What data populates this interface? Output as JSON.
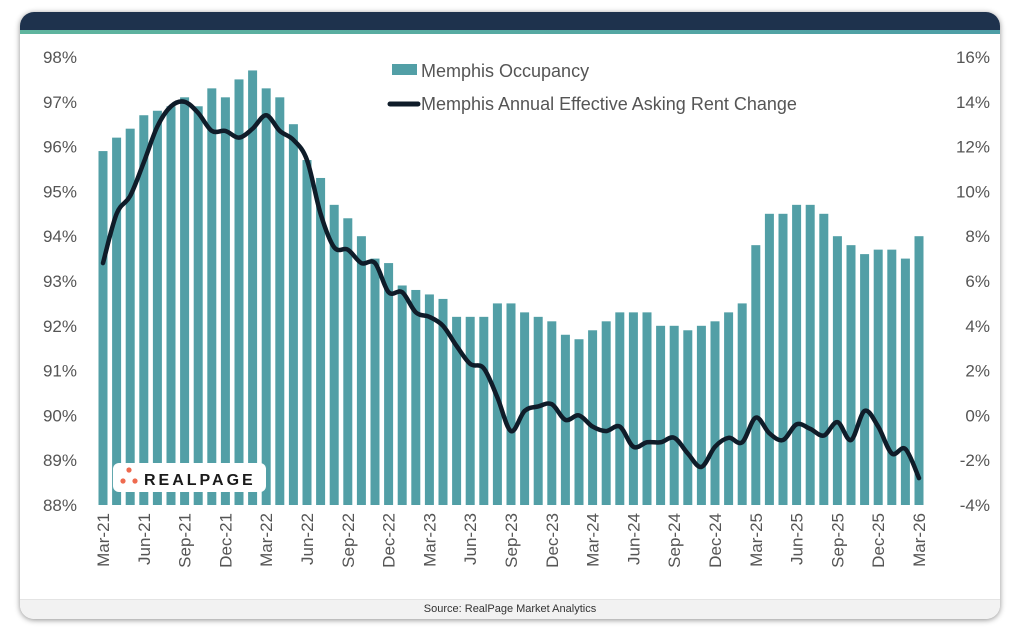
{
  "chart_data": {
    "type": "bar+line",
    "title": "",
    "categories": [
      "Mar-21",
      "Apr-21",
      "May-21",
      "Jun-21",
      "Jul-21",
      "Aug-21",
      "Sep-21",
      "Oct-21",
      "Nov-21",
      "Dec-21",
      "Jan-22",
      "Feb-22",
      "Mar-22",
      "Apr-22",
      "May-22",
      "Jun-22",
      "Jul-22",
      "Aug-22",
      "Sep-22",
      "Oct-22",
      "Nov-22",
      "Dec-22",
      "Jan-23",
      "Feb-23",
      "Mar-23",
      "Apr-23",
      "May-23",
      "Jun-23",
      "Jul-23",
      "Aug-23",
      "Sep-23",
      "Oct-23",
      "Nov-23",
      "Dec-23",
      "Jan-24",
      "Feb-24",
      "Mar-24",
      "Apr-24",
      "May-24",
      "Jun-24",
      "Jul-24",
      "Aug-24",
      "Sep-24",
      "Oct-24",
      "Nov-24",
      "Dec-24",
      "Jan-25",
      "Feb-25",
      "Mar-25",
      "Apr-25",
      "May-25",
      "Jun-25",
      "Jul-25",
      "Aug-25",
      "Sep-25",
      "Oct-25",
      "Nov-25",
      "Dec-25",
      "Jan-26",
      "Feb-26",
      "Mar-26"
    ],
    "x_tick_labels": [
      "Mar-21",
      "Jun-21",
      "Sep-21",
      "Dec-21",
      "Mar-22",
      "Jun-22",
      "Sep-22",
      "Dec-22",
      "Mar-23",
      "Jun-23",
      "Sep-23",
      "Dec-23",
      "Mar-24",
      "Jun-24",
      "Sep-24",
      "Dec-24",
      "Mar-25",
      "Jun-25",
      "Sep-25",
      "Dec-25",
      "Mar-26"
    ],
    "series": [
      {
        "name": "Memphis Occupancy",
        "type": "bar",
        "axis": "left",
        "color": "#529fa6",
        "values": [
          95.9,
          96.2,
          96.4,
          96.7,
          96.8,
          96.9,
          97.1,
          96.9,
          97.3,
          97.1,
          97.5,
          97.7,
          97.3,
          97.1,
          96.5,
          95.7,
          95.3,
          94.7,
          94.4,
          94.0,
          93.5,
          93.4,
          92.9,
          92.8,
          92.7,
          92.6,
          92.2,
          92.2,
          92.2,
          92.5,
          92.5,
          92.3,
          92.2,
          92.1,
          91.8,
          91.7,
          91.9,
          92.1,
          92.3,
          92.3,
          92.3,
          92.0,
          92.0,
          91.9,
          92.0,
          92.1,
          92.3,
          92.5,
          93.8,
          94.5,
          94.5,
          94.7,
          94.7,
          94.5,
          94.0,
          93.8,
          93.6,
          93.7,
          93.7,
          93.5,
          94.0
        ]
      },
      {
        "name": "Memphis Annual Effective Asking Rent Change",
        "type": "line",
        "axis": "right",
        "color": "#0f1c29",
        "values": [
          6.8,
          9.0,
          9.8,
          11.3,
          12.9,
          13.8,
          14.0,
          13.5,
          12.7,
          12.7,
          12.4,
          12.8,
          13.4,
          12.7,
          12.3,
          11.4,
          9.0,
          7.5,
          7.4,
          6.8,
          6.8,
          5.5,
          5.5,
          4.6,
          4.4,
          4.0,
          3.1,
          2.3,
          2.1,
          0.8,
          -0.7,
          0.2,
          0.4,
          0.5,
          -0.2,
          0.0,
          -0.5,
          -0.7,
          -0.5,
          -1.4,
          -1.2,
          -1.2,
          -1.0,
          -1.7,
          -2.3,
          -1.4,
          -1.0,
          -1.2,
          -0.1,
          -0.8,
          -1.1,
          -0.4,
          -0.6,
          -0.9,
          -0.3,
          -1.1,
          0.2,
          -0.5,
          -1.7,
          -1.5,
          -2.8
        ]
      }
    ],
    "y_left": {
      "lim": [
        88,
        98
      ],
      "ticks": [
        "88%",
        "89%",
        "90%",
        "91%",
        "92%",
        "93%",
        "94%",
        "95%",
        "96%",
        "97%",
        "98%"
      ]
    },
    "y_right": {
      "lim": [
        -4,
        16
      ],
      "ticks": [
        "-4%",
        "-2%",
        "0%",
        "2%",
        "4%",
        "6%",
        "8%",
        "10%",
        "12%",
        "14%",
        "16%"
      ]
    },
    "legend_placement": "top-center",
    "grid": false
  },
  "logo_text": "REALPAGE",
  "source": "Source: RealPage Market Analytics"
}
